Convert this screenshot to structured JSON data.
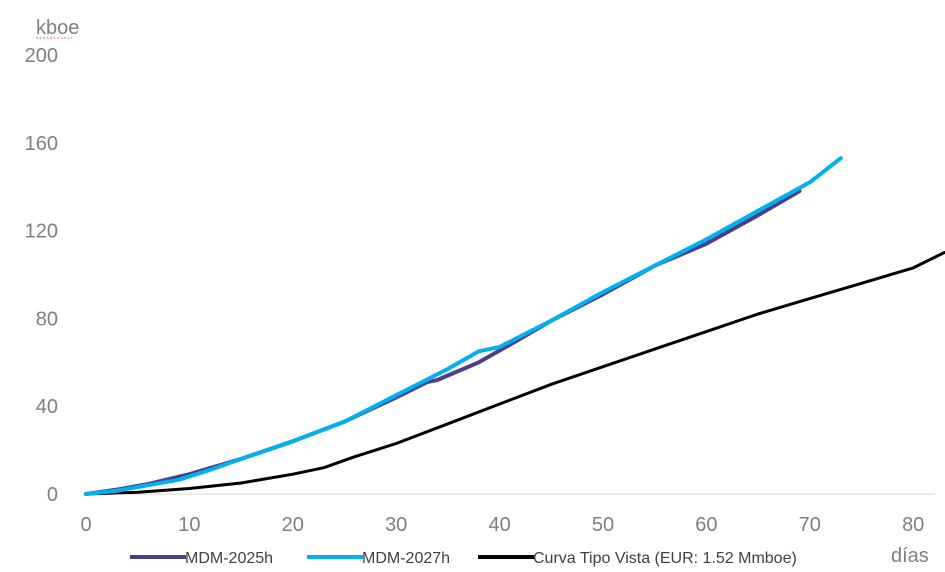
{
  "chart_data": {
    "type": "line",
    "ylabel": "kboe",
    "xlabel": "días",
    "xlim": [
      0,
      80
    ],
    "ylim": [
      0,
      200
    ],
    "x_ticks": [
      0,
      10,
      20,
      30,
      40,
      50,
      60,
      70,
      80
    ],
    "y_ticks": [
      0,
      40,
      80,
      120,
      160,
      200
    ],
    "grid": false,
    "legend": "bottom",
    "series": [
      {
        "name": "MDM-2025h",
        "color": "#4b3f8a",
        "points": [
          [
            0,
            0
          ],
          [
            3,
            2
          ],
          [
            6,
            4.5
          ],
          [
            10,
            9
          ],
          [
            15,
            16
          ],
          [
            20,
            24
          ],
          [
            25,
            33
          ],
          [
            30,
            44
          ],
          [
            33,
            51
          ],
          [
            34,
            52
          ],
          [
            38,
            60
          ],
          [
            41,
            68
          ],
          [
            45,
            79
          ],
          [
            50,
            91
          ],
          [
            55,
            104
          ],
          [
            60,
            114
          ],
          [
            65,
            127
          ],
          [
            69,
            138
          ]
        ]
      },
      {
        "name": "MDM-2027h",
        "color": "#00b0f0",
        "points": [
          [
            0,
            0
          ],
          [
            3,
            1.5
          ],
          [
            6,
            4
          ],
          [
            9,
            6.5
          ],
          [
            12,
            11
          ],
          [
            15,
            16
          ],
          [
            20,
            24
          ],
          [
            25,
            33
          ],
          [
            30,
            45
          ],
          [
            35,
            57
          ],
          [
            38,
            65
          ],
          [
            40,
            67
          ],
          [
            45,
            79
          ],
          [
            50,
            92
          ],
          [
            55,
            104
          ],
          [
            60,
            116
          ],
          [
            65,
            129
          ],
          [
            70,
            142
          ],
          [
            73,
            153
          ]
        ]
      },
      {
        "name": "Curva Tipo Vista (EUR: 1.52 Mmboe)",
        "color": "#000000",
        "points": [
          [
            0,
            0
          ],
          [
            5,
            0.8
          ],
          [
            10,
            2.5
          ],
          [
            15,
            5
          ],
          [
            20,
            9
          ],
          [
            23,
            12
          ],
          [
            26,
            17
          ],
          [
            30,
            23
          ],
          [
            35,
            32
          ],
          [
            40,
            41
          ],
          [
            45,
            50
          ],
          [
            50,
            58
          ],
          [
            55,
            66
          ],
          [
            60,
            74
          ],
          [
            65,
            82
          ],
          [
            70,
            89
          ],
          [
            75,
            96
          ],
          [
            80,
            103
          ],
          [
            83,
            110
          ]
        ]
      }
    ]
  }
}
